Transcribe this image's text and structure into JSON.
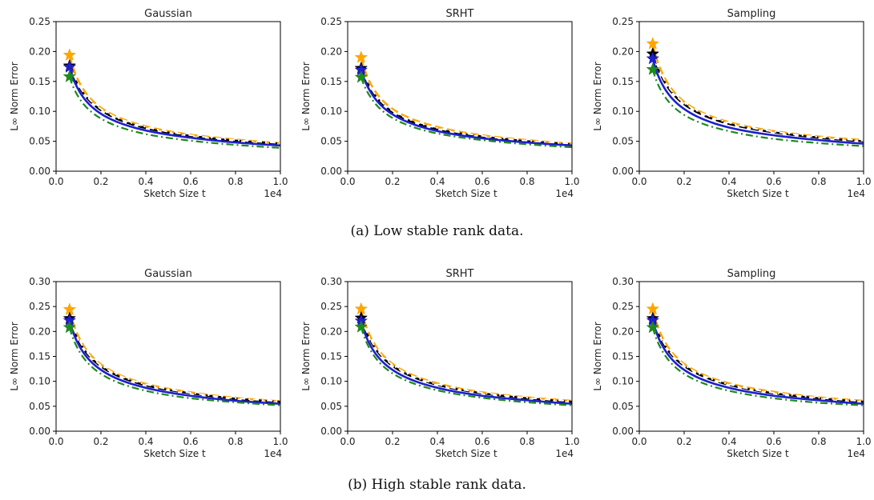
{
  "captions": {
    "a": "(a) Low stable rank data.",
    "b": "(b) High stable rank data."
  },
  "colors": {
    "black_series": "#000000",
    "blue_series": "#1f1fcf",
    "orange_series": "#ffa500",
    "green_series": "#1e8a1e",
    "white_series": "#ffffff"
  },
  "chart_data": [
    {
      "type": "line",
      "row": "a",
      "title": "Gaussian",
      "xlabel": "Sketch Size t",
      "ylabel": "L∞ Norm Error",
      "x_offset_label": "1e4",
      "xlim": [
        0,
        1.0
      ],
      "ylim": [
        0,
        0.25
      ],
      "xticks": [
        "0.0",
        "0.2",
        "0.4",
        "0.6",
        "0.8",
        "1.0"
      ],
      "yticks": [
        "0.00",
        "0.05",
        "0.10",
        "0.15",
        "0.20",
        "0.25"
      ],
      "x": [
        0.06,
        0.1,
        0.2,
        0.4,
        0.6,
        0.8,
        1.0
      ],
      "series": [
        {
          "style": "orange-dash",
          "start_marker": "star",
          "values": [
            0.194,
            0.151,
            0.106,
            0.075,
            0.061,
            0.053,
            0.047
          ]
        },
        {
          "style": "black-dash",
          "start_marker": "star",
          "values": [
            0.176,
            0.143,
            0.102,
            0.072,
            0.059,
            0.051,
            0.046
          ]
        },
        {
          "style": "white-dashdot",
          "values": [
            0.182,
            0.145,
            0.104,
            0.074,
            0.06,
            0.052,
            0.047
          ]
        },
        {
          "style": "blue-solid",
          "start_marker": "star",
          "values": [
            0.174,
            0.136,
            0.096,
            0.068,
            0.056,
            0.048,
            0.043
          ]
        },
        {
          "style": "green-dashdot",
          "start_marker": "star",
          "values": [
            0.158,
            0.124,
            0.088,
            0.062,
            0.051,
            0.044,
            0.039
          ]
        }
      ]
    },
    {
      "type": "line",
      "row": "a",
      "title": "SRHT",
      "xlabel": "Sketch Size t",
      "ylabel": "L∞ Norm Error",
      "x_offset_label": "1e4",
      "xlim": [
        0,
        1.0
      ],
      "ylim": [
        0,
        0.25
      ],
      "xticks": [
        "0.0",
        "0.2",
        "0.4",
        "0.6",
        "0.8",
        "1.0"
      ],
      "yticks": [
        "0.00",
        "0.05",
        "0.10",
        "0.15",
        "0.20",
        "0.25"
      ],
      "x": [
        0.06,
        0.1,
        0.2,
        0.4,
        0.6,
        0.8,
        1.0
      ],
      "series": [
        {
          "style": "orange-dash",
          "start_marker": "star",
          "values": [
            0.19,
            0.148,
            0.104,
            0.074,
            0.06,
            0.052,
            0.046
          ]
        },
        {
          "style": "black-dash",
          "start_marker": "star",
          "values": [
            0.172,
            0.14,
            0.099,
            0.07,
            0.058,
            0.05,
            0.045
          ]
        },
        {
          "style": "white-dashdot",
          "values": [
            0.178,
            0.142,
            0.101,
            0.072,
            0.059,
            0.051,
            0.046
          ]
        },
        {
          "style": "blue-solid",
          "start_marker": "star",
          "values": [
            0.169,
            0.134,
            0.095,
            0.067,
            0.055,
            0.048,
            0.043
          ]
        },
        {
          "style": "green-dashdot",
          "start_marker": "star",
          "values": [
            0.157,
            0.125,
            0.089,
            0.063,
            0.052,
            0.045,
            0.04
          ]
        }
      ]
    },
    {
      "type": "line",
      "row": "a",
      "title": "Sampling",
      "xlabel": "Sketch Size t",
      "ylabel": "L∞ Norm Error",
      "x_offset_label": "1e4",
      "xlim": [
        0,
        1.0
      ],
      "ylim": [
        0,
        0.25
      ],
      "xticks": [
        "0.0",
        "0.2",
        "0.4",
        "0.6",
        "0.8",
        "1.0"
      ],
      "yticks": [
        "0.00",
        "0.05",
        "0.10",
        "0.15",
        "0.20",
        "0.25"
      ],
      "x": [
        0.06,
        0.1,
        0.2,
        0.4,
        0.6,
        0.8,
        1.0
      ],
      "series": [
        {
          "style": "orange-dash",
          "start_marker": "star",
          "values": [
            0.213,
            0.166,
            0.116,
            0.082,
            0.067,
            0.058,
            0.052
          ]
        },
        {
          "style": "black-dash",
          "start_marker": "star",
          "values": [
            0.196,
            0.158,
            0.112,
            0.079,
            0.065,
            0.056,
            0.05
          ]
        },
        {
          "style": "white-dashdot",
          "values": [
            0.202,
            0.161,
            0.114,
            0.081,
            0.066,
            0.057,
            0.051
          ]
        },
        {
          "style": "blue-solid",
          "start_marker": "star",
          "values": [
            0.188,
            0.147,
            0.104,
            0.073,
            0.06,
            0.052,
            0.046
          ]
        },
        {
          "style": "green-dashdot",
          "start_marker": "star",
          "values": [
            0.17,
            0.133,
            0.094,
            0.067,
            0.054,
            0.047,
            0.042
          ]
        }
      ]
    },
    {
      "type": "line",
      "row": "b",
      "title": "Gaussian",
      "xlabel": "Sketch Size t",
      "ylabel": "L∞ Norm Error",
      "x_offset_label": "1e4",
      "xlim": [
        0,
        1.0
      ],
      "ylim": [
        0,
        0.3
      ],
      "xticks": [
        "0.0",
        "0.2",
        "0.4",
        "0.6",
        "0.8",
        "1.0"
      ],
      "yticks": [
        "0.00",
        "0.05",
        "0.10",
        "0.15",
        "0.20",
        "0.25",
        "0.30"
      ],
      "x": [
        0.06,
        0.1,
        0.2,
        0.4,
        0.6,
        0.8,
        1.0
      ],
      "series": [
        {
          "style": "orange-dash",
          "start_marker": "star",
          "values": [
            0.244,
            0.19,
            0.134,
            0.095,
            0.078,
            0.067,
            0.06
          ]
        },
        {
          "style": "black-dash",
          "start_marker": "star",
          "values": [
            0.226,
            0.182,
            0.13,
            0.092,
            0.076,
            0.065,
            0.059
          ]
        },
        {
          "style": "white-dashdot",
          "values": [
            0.232,
            0.185,
            0.132,
            0.094,
            0.077,
            0.066,
            0.06
          ]
        },
        {
          "style": "blue-solid",
          "start_marker": "star",
          "values": [
            0.222,
            0.174,
            0.123,
            0.087,
            0.071,
            0.061,
            0.055
          ]
        },
        {
          "style": "green-dashdot",
          "start_marker": "star",
          "values": [
            0.208,
            0.163,
            0.115,
            0.081,
            0.066,
            0.058,
            0.052
          ]
        }
      ]
    },
    {
      "type": "line",
      "row": "b",
      "title": "SRHT",
      "xlabel": "Sketch Size t",
      "ylabel": "L∞ Norm Error",
      "x_offset_label": "1e4",
      "xlim": [
        0,
        1.0
      ],
      "ylim": [
        0,
        0.3
      ],
      "xticks": [
        "0.0",
        "0.2",
        "0.4",
        "0.6",
        "0.8",
        "1.0"
      ],
      "yticks": [
        "0.00",
        "0.05",
        "0.10",
        "0.15",
        "0.20",
        "0.25",
        "0.30"
      ],
      "x": [
        0.06,
        0.1,
        0.2,
        0.4,
        0.6,
        0.8,
        1.0
      ],
      "series": [
        {
          "style": "orange-dash",
          "start_marker": "star",
          "values": [
            0.245,
            0.191,
            0.135,
            0.096,
            0.078,
            0.068,
            0.061
          ]
        },
        {
          "style": "black-dash",
          "start_marker": "star",
          "values": [
            0.227,
            0.183,
            0.131,
            0.093,
            0.076,
            0.066,
            0.059
          ]
        },
        {
          "style": "white-dashdot",
          "values": [
            0.233,
            0.186,
            0.133,
            0.094,
            0.077,
            0.067,
            0.06
          ]
        },
        {
          "style": "blue-solid",
          "start_marker": "star",
          "values": [
            0.221,
            0.173,
            0.123,
            0.087,
            0.071,
            0.062,
            0.055
          ]
        },
        {
          "style": "green-dashdot",
          "start_marker": "star",
          "values": [
            0.209,
            0.164,
            0.116,
            0.082,
            0.067,
            0.058,
            0.052
          ]
        }
      ]
    },
    {
      "type": "line",
      "row": "b",
      "title": "Sampling",
      "xlabel": "Sketch Size t",
      "ylabel": "L∞ Norm Error",
      "x_offset_label": "1e4",
      "xlim": [
        0,
        1.0
      ],
      "ylim": [
        0,
        0.3
      ],
      "xticks": [
        "0.0",
        "0.2",
        "0.4",
        "0.6",
        "0.8",
        "1.0"
      ],
      "yticks": [
        "0.00",
        "0.05",
        "0.10",
        "0.15",
        "0.20",
        "0.25",
        "0.30"
      ],
      "x": [
        0.06,
        0.1,
        0.2,
        0.4,
        0.6,
        0.8,
        1.0
      ],
      "series": [
        {
          "style": "orange-dash",
          "start_marker": "star",
          "values": [
            0.245,
            0.191,
            0.135,
            0.096,
            0.079,
            0.068,
            0.061
          ]
        },
        {
          "style": "black-dash",
          "start_marker": "star",
          "values": [
            0.226,
            0.182,
            0.131,
            0.093,
            0.076,
            0.066,
            0.059
          ]
        },
        {
          "style": "white-dashdot",
          "values": [
            0.232,
            0.185,
            0.133,
            0.094,
            0.077,
            0.067,
            0.06
          ]
        },
        {
          "style": "blue-solid",
          "start_marker": "star",
          "values": [
            0.222,
            0.174,
            0.123,
            0.087,
            0.071,
            0.062,
            0.055
          ]
        },
        {
          "style": "green-dashdot",
          "start_marker": "star",
          "values": [
            0.208,
            0.163,
            0.115,
            0.081,
            0.066,
            0.057,
            0.052
          ]
        }
      ]
    }
  ]
}
